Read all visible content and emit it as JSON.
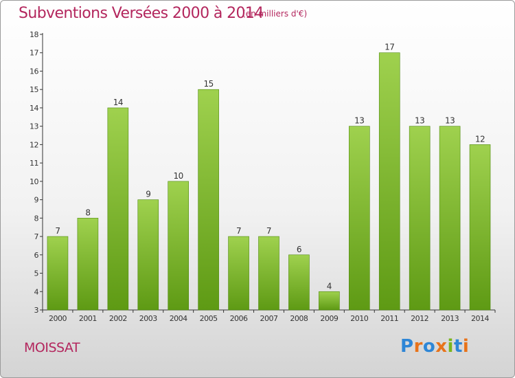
{
  "title": "Subventions Versées 2000 à 2014",
  "subtitle": "(en milliers d'€)",
  "commune": "MOISSAT",
  "brand": {
    "text": "Proxiti",
    "letter_colors": [
      "#2e86d6",
      "#e8731a",
      "#2e86d6",
      "#e8731a",
      "#7ab51d",
      "#2e86d6",
      "#e8731a"
    ]
  },
  "colors": {
    "bar_light": "#9fd14e",
    "bar_dark": "#5e9a14",
    "text": "#b3265d",
    "axis": "#333333"
  },
  "chart_data": {
    "type": "bar",
    "categories": [
      "2000",
      "2001",
      "2002",
      "2003",
      "2004",
      "2005",
      "2006",
      "2007",
      "2008",
      "2009",
      "2010",
      "2011",
      "2012",
      "2013",
      "2014"
    ],
    "values": [
      7,
      8,
      14,
      9,
      10,
      15,
      7,
      7,
      6,
      4,
      13,
      17,
      13,
      13,
      12
    ],
    "ylim": [
      3,
      18
    ],
    "yticks": [
      3,
      4,
      5,
      6,
      7,
      8,
      9,
      10,
      11,
      12,
      13,
      14,
      15,
      16,
      17,
      18
    ],
    "grid": false,
    "data_labels": true
  }
}
